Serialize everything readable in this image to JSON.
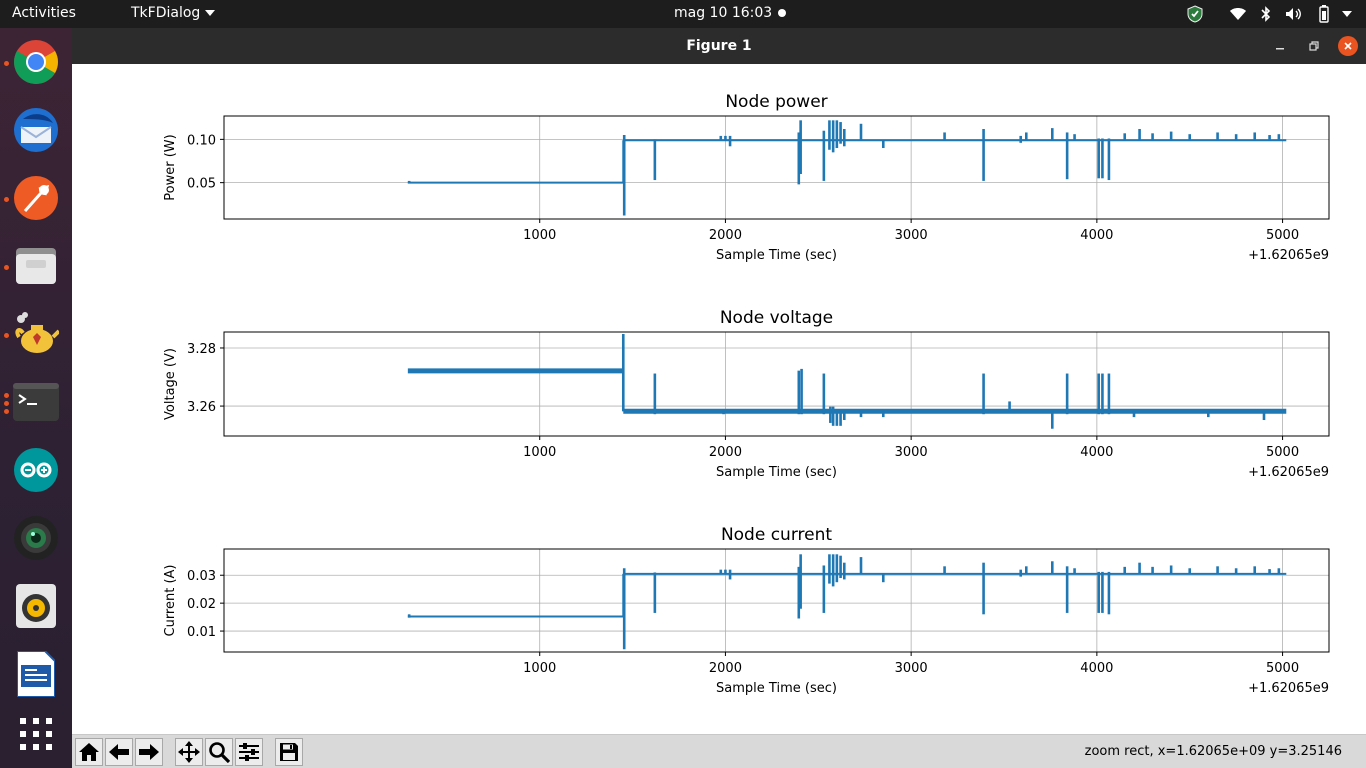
{
  "topbar": {
    "activities": "Activities",
    "app_menu": "TkFDialog",
    "clock": "mag 10  16:03"
  },
  "dock": {
    "items": [
      {
        "name": "chrome",
        "running": true
      },
      {
        "name": "thunderbird",
        "running": false
      },
      {
        "name": "postman",
        "running": true
      },
      {
        "name": "files",
        "running": true
      },
      {
        "name": "genie",
        "running": true
      },
      {
        "name": "terminal",
        "running": true
      },
      {
        "name": "arduino",
        "running": false
      },
      {
        "name": "webcam",
        "running": false
      },
      {
        "name": "rhythmbox",
        "running": false
      },
      {
        "name": "writer",
        "running": false
      },
      {
        "name": "apps-grid",
        "running": false
      }
    ]
  },
  "window": {
    "title": "Figure 1"
  },
  "chart_data": [
    {
      "type": "line",
      "title": "Node power",
      "xlabel": "Sample Time (sec)",
      "ylabel": "Power (W)",
      "x_offset_label": "+1.62065e9",
      "xlim": [
        -700,
        5250
      ],
      "ylim": [
        0.008,
        0.127
      ],
      "xticks": [
        1000,
        2000,
        3000,
        4000,
        5000
      ],
      "yticks": [
        0.05,
        0.1
      ],
      "ytick_labels": [
        "0.05",
        "0.10"
      ],
      "grid": true,
      "color": "#1f77b4",
      "baseline_segments": [
        [
          290,
          1450,
          0.05
        ],
        [
          1450,
          5020,
          0.099
        ]
      ],
      "spikes": [
        [
          297,
          0.049,
          0.052
        ],
        [
          1455,
          0.012,
          0.105
        ],
        [
          1620,
          0.053,
          0.1
        ],
        [
          1975,
          0.099,
          0.104
        ],
        [
          2000,
          0.099,
          0.104
        ],
        [
          2025,
          0.092,
          0.104
        ],
        [
          2395,
          0.048,
          0.108
        ],
        [
          2405,
          0.06,
          0.122
        ],
        [
          2530,
          0.052,
          0.11
        ],
        [
          2560,
          0.088,
          0.122
        ],
        [
          2580,
          0.085,
          0.122
        ],
        [
          2600,
          0.09,
          0.122
        ],
        [
          2620,
          0.095,
          0.12
        ],
        [
          2640,
          0.092,
          0.112
        ],
        [
          2730,
          0.099,
          0.118
        ],
        [
          2850,
          0.09,
          0.099
        ],
        [
          3180,
          0.099,
          0.108
        ],
        [
          3390,
          0.052,
          0.112
        ],
        [
          3590,
          0.096,
          0.104
        ],
        [
          3620,
          0.099,
          0.108
        ],
        [
          3760,
          0.099,
          0.113
        ],
        [
          3840,
          0.054,
          0.108
        ],
        [
          3880,
          0.099,
          0.106
        ],
        [
          4010,
          0.055,
          0.101
        ],
        [
          4030,
          0.055,
          0.101
        ],
        [
          4065,
          0.053,
          0.101
        ],
        [
          4150,
          0.099,
          0.107
        ],
        [
          4230,
          0.099,
          0.112
        ],
        [
          4300,
          0.099,
          0.107
        ],
        [
          4400,
          0.099,
          0.109
        ],
        [
          4500,
          0.099,
          0.106
        ],
        [
          4650,
          0.099,
          0.108
        ],
        [
          4750,
          0.099,
          0.106
        ],
        [
          4850,
          0.099,
          0.108
        ],
        [
          4930,
          0.099,
          0.105
        ],
        [
          4980,
          0.099,
          0.106
        ]
      ]
    },
    {
      "type": "line",
      "title": "Node voltage",
      "xlabel": "Sample Time (sec)",
      "ylabel": "Voltage (V)",
      "x_offset_label": "+1.62065e9",
      "xlim": [
        -700,
        5250
      ],
      "ylim": [
        3.2497,
        3.2855
      ],
      "xticks": [
        1000,
        2000,
        3000,
        4000,
        5000
      ],
      "yticks": [
        3.26,
        3.28
      ],
      "ytick_labels": [
        "3.26",
        "3.28"
      ],
      "grid": true,
      "color": "#1f77b4",
      "thick_segments": [
        [
          290,
          1450,
          3.2721
        ],
        [
          1450,
          5020,
          3.2582
        ]
      ],
      "spikes": [
        [
          1450,
          3.2582,
          3.2848
        ],
        [
          1620,
          3.2572,
          3.2712
        ],
        [
          1990,
          3.2572,
          3.2582
        ],
        [
          2395,
          3.2572,
          3.2722
        ],
        [
          2410,
          3.2572,
          3.2728
        ],
        [
          2530,
          3.2572,
          3.2712
        ],
        [
          2565,
          3.2542,
          3.2598
        ],
        [
          2580,
          3.2532,
          3.2598
        ],
        [
          2600,
          3.2532,
          3.2582
        ],
        [
          2620,
          3.2532,
          3.2582
        ],
        [
          2640,
          3.2552,
          3.2582
        ],
        [
          2730,
          3.2562,
          3.2582
        ],
        [
          2850,
          3.2562,
          3.2582
        ],
        [
          3390,
          3.2572,
          3.2712
        ],
        [
          3530,
          3.2582,
          3.2616
        ],
        [
          3760,
          3.2522,
          3.2582
        ],
        [
          3840,
          3.2572,
          3.2712
        ],
        [
          4010,
          3.2572,
          3.2712
        ],
        [
          4030,
          3.2572,
          3.2712
        ],
        [
          4065,
          3.2572,
          3.2712
        ],
        [
          4200,
          3.2562,
          3.2582
        ],
        [
          4600,
          3.2562,
          3.2582
        ],
        [
          4900,
          3.2552,
          3.2582
        ]
      ]
    },
    {
      "type": "line",
      "title": "Node current",
      "xlabel": "Sample Time (sec)",
      "ylabel": "Current (A)",
      "x_offset_label": "+1.62065e9",
      "xlim": [
        -700,
        5250
      ],
      "ylim": [
        0.0025,
        0.0394
      ],
      "xticks": [
        1000,
        2000,
        3000,
        4000,
        5000
      ],
      "yticks": [
        0.01,
        0.02,
        0.03
      ],
      "ytick_labels": [
        "0.01",
        "0.02",
        "0.03"
      ],
      "grid": true,
      "color": "#1f77b4",
      "baseline_segments": [
        [
          290,
          1450,
          0.0152
        ],
        [
          1450,
          5020,
          0.0305
        ]
      ],
      "spikes": [
        [
          297,
          0.0148,
          0.016
        ],
        [
          1455,
          0.0035,
          0.0325
        ],
        [
          1620,
          0.0165,
          0.031
        ],
        [
          1975,
          0.0305,
          0.032
        ],
        [
          2000,
          0.0305,
          0.032
        ],
        [
          2025,
          0.0285,
          0.032
        ],
        [
          2395,
          0.0145,
          0.033
        ],
        [
          2405,
          0.018,
          0.0375
        ],
        [
          2530,
          0.0165,
          0.0335
        ],
        [
          2560,
          0.027,
          0.0375
        ],
        [
          2580,
          0.026,
          0.0375
        ],
        [
          2600,
          0.0275,
          0.0375
        ],
        [
          2620,
          0.029,
          0.037
        ],
        [
          2640,
          0.0285,
          0.0345
        ],
        [
          2730,
          0.0305,
          0.0365
        ],
        [
          2850,
          0.0275,
          0.0305
        ],
        [
          3180,
          0.0305,
          0.0332
        ],
        [
          3390,
          0.016,
          0.0345
        ],
        [
          3590,
          0.0295,
          0.032
        ],
        [
          3620,
          0.0305,
          0.0332
        ],
        [
          3760,
          0.0305,
          0.035
        ],
        [
          3840,
          0.0165,
          0.0332
        ],
        [
          3880,
          0.0305,
          0.0325
        ],
        [
          4010,
          0.0165,
          0.0312
        ],
        [
          4030,
          0.0165,
          0.0312
        ],
        [
          4065,
          0.016,
          0.0312
        ],
        [
          4150,
          0.0305,
          0.033
        ],
        [
          4230,
          0.0305,
          0.0345
        ],
        [
          4300,
          0.0305,
          0.033
        ],
        [
          4400,
          0.0305,
          0.0335
        ],
        [
          4500,
          0.0305,
          0.0325
        ],
        [
          4650,
          0.0305,
          0.0332
        ],
        [
          4750,
          0.0305,
          0.0325
        ],
        [
          4850,
          0.0305,
          0.0332
        ],
        [
          4930,
          0.0305,
          0.0322
        ],
        [
          4980,
          0.0305,
          0.0325
        ]
      ]
    }
  ],
  "toolbar": {
    "buttons": [
      "home",
      "back",
      "forward",
      "pan",
      "zoom",
      "configure-subplots",
      "save"
    ],
    "status": "zoom rect, x=1.62065e+09  y=3.25146"
  }
}
